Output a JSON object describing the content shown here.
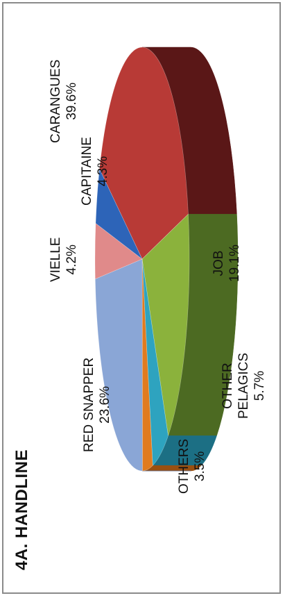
{
  "chart_data": {
    "type": "pie",
    "title": "4A. HANDLINE",
    "style": "3d-tilted",
    "slices": [
      {
        "label": "CARANGUES",
        "value": 39.6,
        "value_label": "39.6%",
        "color": "#b83a36",
        "side_color": "#5a1717"
      },
      {
        "label": "JOB",
        "value": 19.1,
        "value_label": "19.1%",
        "color": "#8bb23c",
        "side_color": "#4c6a22"
      },
      {
        "label": "OTHER",
        "label2": "PELAGICS",
        "value": 5.7,
        "value_label": "5.7%",
        "color": "#2ea3bf",
        "side_color": "#1c6f84"
      },
      {
        "label": "OTHERS",
        "value": 3.5,
        "value_label": "3.5%",
        "color": "#e07b1f",
        "side_color": "#9a5010"
      },
      {
        "label": "RED SNAPPER",
        "value": 23.6,
        "value_label": "23.6%",
        "color": "#8aa6d6",
        "side_color": "#5d76a6"
      },
      {
        "label": "VIELLE",
        "value": 4.2,
        "value_label": "4.2%",
        "color": "#e08a8a",
        "side_color": "#a05a5a"
      },
      {
        "label": "CAPITAINE",
        "value": 4.3,
        "value_label": "4.3%",
        "color": "#2d64b8",
        "side_color": "#1d427e"
      }
    ]
  }
}
